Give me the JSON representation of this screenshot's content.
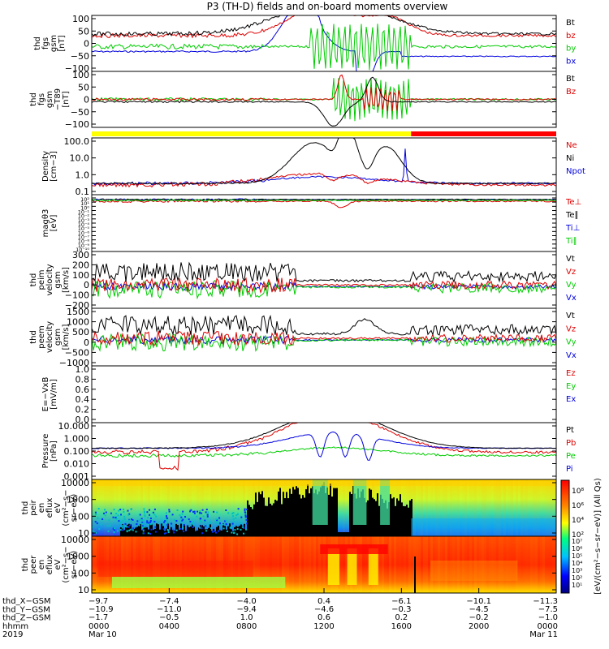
{
  "title": "P3 (TH-D) fields and on-board moments overview",
  "colors": {
    "black": "#000000",
    "red": "#dd0000",
    "green": "#00cc00",
    "blue": "#0000dd",
    "yellow": "#ffff00",
    "bar_red": "#ff0000",
    "frame": "#000000"
  },
  "panels": [
    {
      "id": "fgs_gsm",
      "ylabel": [
        "thd",
        "fgs",
        "gsm",
        "[nT]"
      ],
      "yticks": [
        "100",
        "50",
        "0",
        "−50",
        "−100"
      ],
      "legend": [
        {
          "text": "Bt",
          "color": "#000000"
        },
        {
          "text": "bz",
          "color": "#dd0000"
        },
        {
          "text": "by",
          "color": "#00cc00"
        },
        {
          "text": "bx",
          "color": "#0000dd"
        }
      ]
    },
    {
      "id": "fgs_gsm_t89",
      "ylabel": [
        "thd",
        "fgs",
        "gsm",
        "−T89",
        "[nT]"
      ],
      "yticks": [
        "100",
        "50",
        "0",
        "−50",
        "−100"
      ],
      "legend": [
        {
          "text": "Bt",
          "color": "#000000"
        },
        {
          "text": "Bz",
          "color": "#dd0000"
        }
      ]
    },
    {
      "id": "density",
      "ylabel": [
        "Density",
        "[cm−3]"
      ],
      "yticks": [
        "100.0",
        "10.0",
        "1.0",
        "0.1"
      ],
      "legend": [
        {
          "text": "Ne",
          "color": "#dd0000"
        },
        {
          "text": "Ni",
          "color": "#000000"
        },
        {
          "text": "Npot",
          "color": "#0000dd"
        }
      ]
    },
    {
      "id": "temperature",
      "ylabel": [
        "magθ3",
        "[eV]"
      ],
      "yticks": [
        "10²",
        "10¹",
        "10⁰",
        "10⁻¹",
        "10⁻²",
        "10⁻³",
        "10⁻⁴",
        "10⁻⁵",
        "10⁻⁶",
        "10⁻⁷",
        "10⁻⁸",
        "10⁻⁹",
        "10⁻¹⁰"
      ],
      "legend": [
        {
          "text": "Te⊥",
          "color": "#dd0000"
        },
        {
          "text": "Te∥",
          "color": "#000000"
        },
        {
          "text": "Ti⊥",
          "color": "#0000dd"
        },
        {
          "text": "Ti∥",
          "color": "#00cc00"
        }
      ]
    },
    {
      "id": "peim_vel",
      "ylabel": [
        "thd",
        "peim",
        "velocity",
        "gsm",
        "[km/s]"
      ],
      "yticks": [
        "300",
        "200",
        "100",
        "0",
        "−100",
        "−200"
      ],
      "legend": [
        {
          "text": "Vt",
          "color": "#000000"
        },
        {
          "text": "Vz",
          "color": "#dd0000"
        },
        {
          "text": "Vy",
          "color": "#00cc00"
        },
        {
          "text": "Vx",
          "color": "#0000dd"
        }
      ]
    },
    {
      "id": "peem_vel",
      "ylabel": [
        "thd",
        "peem",
        "velocity",
        "gsm",
        "[km/s]"
      ],
      "yticks": [
        "1500",
        "1000",
        "500",
        "0",
        "−500",
        "−1000"
      ],
      "legend": [
        {
          "text": "Vt",
          "color": "#000000"
        },
        {
          "text": "Vz",
          "color": "#dd0000"
        },
        {
          "text": "Vy",
          "color": "#00cc00"
        },
        {
          "text": "Vx",
          "color": "#0000dd"
        }
      ]
    },
    {
      "id": "efield",
      "ylabel": [
        "E=−VxB",
        "[mV/m]"
      ],
      "yticks": [
        "1.0",
        "0.8",
        "0.6",
        "0.4",
        "0.2",
        "0.0"
      ],
      "legend": [
        {
          "text": "Ez",
          "color": "#dd0000"
        },
        {
          "text": "Ey",
          "color": "#00cc00"
        },
        {
          "text": "Ex",
          "color": "#0000dd"
        }
      ]
    },
    {
      "id": "pressure",
      "ylabel": [
        "Pressure",
        "[nPa]"
      ],
      "yticks": [
        "10.000",
        "1.000",
        "0.100",
        "0.010",
        "0.001"
      ],
      "legend": [
        {
          "text": "Pt",
          "color": "#000000"
        },
        {
          "text": "Pb",
          "color": "#dd0000"
        },
        {
          "text": "Pe",
          "color": "#00cc00"
        },
        {
          "text": "Pi",
          "color": "#0000dd"
        }
      ]
    },
    {
      "id": "peir_eflux",
      "ylabel": [
        "thd",
        "peir",
        "en",
        "eflux",
        "eV",
        "(cm²−s−",
        "sr−eV)"
      ],
      "yticks": [
        "10000",
        "1000",
        "100",
        "10"
      ]
    },
    {
      "id": "peer_eflux",
      "ylabel": [
        "thd",
        "peer",
        "en",
        "eflux",
        "eV",
        "(cm²−s−",
        "sr−eV)"
      ],
      "yticks": [
        "10000",
        "1000",
        "100",
        "10"
      ]
    }
  ],
  "colorbar": {
    "label": "[eV/(cm²−s−sr−eV)] (All Qs)",
    "upper_ticks": [
      "10⁸",
      "10⁶",
      "10⁴",
      "10²"
    ],
    "lower_ticks": [
      "10⁷",
      "10⁶",
      "10⁵",
      "10⁴",
      "10³",
      "10²",
      "10¹"
    ]
  },
  "xaxis": {
    "row_labels": [
      "thd_X−GSM",
      "thd_Y−GSM",
      "thd_Z−GSM",
      "hhmm",
      "2019"
    ],
    "columns": [
      {
        "x": "−9.7",
        "y": "−10.9",
        "z": "−1.7",
        "hhmm": "0000",
        "date": "Mar 10"
      },
      {
        "x": "−7.4",
        "y": "−11.0",
        "z": "−0.5",
        "hhmm": "0400",
        "date": ""
      },
      {
        "x": "−4.0",
        "y": "−9.4",
        "z": "1.0",
        "hhmm": "0800",
        "date": ""
      },
      {
        "x": "0.4",
        "y": "−4.6",
        "z": "0.6",
        "hhmm": "1200",
        "date": ""
      },
      {
        "x": "−6.1",
        "y": "−0.3",
        "z": "0.2",
        "hhmm": "1600",
        "date": ""
      },
      {
        "x": "−10.1",
        "y": "−4.5",
        "z": "−0.2",
        "hhmm": "2000",
        "date": ""
      },
      {
        "x": "−11.3",
        "y": "−7.5",
        "z": "−1.0",
        "hhmm": "0000",
        "date": "Mar 11"
      }
    ]
  },
  "chart_data": {
    "type": "line",
    "title": "P3 (TH-D) fields and on-board moments overview",
    "x_unit": "hours since 2019 Mar 10 00:00",
    "x": [
      0,
      2,
      4,
      6,
      8,
      10,
      11,
      12,
      13,
      14,
      15,
      16,
      18,
      20,
      22,
      24
    ],
    "series": [
      {
        "name": "Bt",
        "panel": "fgs_gsm",
        "values": [
          25,
          30,
          20,
          20,
          25,
          40,
          60,
          100,
          100,
          100,
          100,
          60,
          30,
          20,
          15,
          10
        ]
      },
      {
        "name": "bz",
        "panel": "fgs_gsm",
        "values": [
          15,
          20,
          15,
          15,
          20,
          35,
          55,
          100,
          90,
          100,
          100,
          55,
          25,
          15,
          12,
          8
        ]
      },
      {
        "name": "by",
        "panel": "fgs_gsm",
        "values": [
          5,
          5,
          5,
          5,
          5,
          5,
          5,
          0,
          50,
          -50,
          30,
          0,
          0,
          0,
          0,
          0
        ]
      },
      {
        "name": "bx",
        "panel": "fgs_gsm",
        "values": [
          -5,
          -5,
          -5,
          -5,
          -10,
          -20,
          -40,
          -100,
          0,
          100,
          20,
          0,
          0,
          0,
          0,
          0
        ]
      },
      {
        "name": "Ni",
        "panel": "density",
        "values": [
          0.6,
          0.5,
          0.5,
          0.6,
          0.8,
          5,
          60,
          0.3,
          150,
          0.3,
          20,
          0.5,
          0.4,
          0.4,
          0.5,
          0.6
        ]
      },
      {
        "name": "Ne",
        "panel": "density",
        "values": [
          0.3,
          0.25,
          0.25,
          0.3,
          0.4,
          0.8,
          2,
          0.2,
          3,
          0.2,
          1.5,
          0.3,
          0.35,
          0.3,
          0.35,
          0.4
        ]
      },
      {
        "name": "Pt",
        "panel": "pressure",
        "values": [
          0.2,
          0.25,
          0.3,
          0.4,
          0.8,
          3,
          8,
          10,
          10,
          10,
          10,
          5,
          1.5,
          0.8,
          0.5,
          0.3
        ]
      },
      {
        "name": "Pi",
        "panel": "pressure",
        "values": [
          0.08,
          0.08,
          0.08,
          0.09,
          0.1,
          0.15,
          0.4,
          0.005,
          0.5,
          0.005,
          0.3,
          0.15,
          0.1,
          0.09,
          0.08,
          0.08
        ]
      }
    ]
  }
}
